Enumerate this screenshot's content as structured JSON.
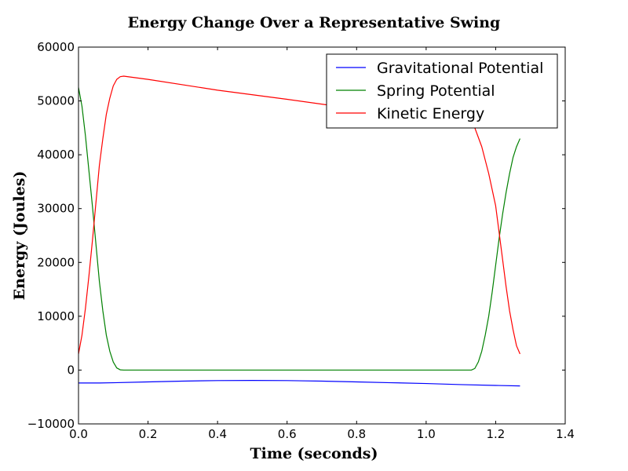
{
  "chart_data": {
    "type": "line",
    "title": "Energy Change Over a Representative Swing",
    "xlabel": "Time (seconds)",
    "ylabel": "Energy (Joules)",
    "xlim": [
      0.0,
      1.4
    ],
    "ylim": [
      -10000,
      60000
    ],
    "xticks": [
      "0.0",
      "0.2",
      "0.4",
      "0.6",
      "0.8",
      "1.0",
      "1.2",
      "1.4"
    ],
    "yticks": [
      "−10000",
      "0",
      "10000",
      "20000",
      "30000",
      "40000",
      "50000",
      "60000"
    ],
    "grid": false,
    "legend_position": "top-right",
    "series": [
      {
        "name": "Gravitational Potential",
        "color": "#0000ff",
        "x": [
          0.0,
          0.06,
          0.1,
          0.2,
          0.3,
          0.4,
          0.5,
          0.6,
          0.7,
          0.8,
          0.9,
          1.0,
          1.1,
          1.2,
          1.27
        ],
        "y": [
          -2400,
          -2400,
          -2350,
          -2200,
          -2050,
          -1950,
          -1920,
          -1950,
          -2050,
          -2200,
          -2350,
          -2500,
          -2700,
          -2850,
          -2950
        ]
      },
      {
        "name": "Spring Potential",
        "color": "#008000",
        "x": [
          0.0,
          0.01,
          0.02,
          0.03,
          0.04,
          0.05,
          0.06,
          0.07,
          0.08,
          0.09,
          0.1,
          0.11,
          0.12,
          0.13,
          0.14,
          0.3,
          0.6,
          0.9,
          1.13,
          1.14,
          1.15,
          1.16,
          1.17,
          1.18,
          1.19,
          1.2,
          1.21,
          1.22,
          1.23,
          1.24,
          1.25,
          1.26,
          1.27
        ],
        "y": [
          52500,
          49000,
          43500,
          37000,
          30500,
          23500,
          16500,
          11000,
          6500,
          3500,
          1500,
          400,
          50,
          0,
          0,
          0,
          0,
          0,
          0,
          300,
          1500,
          3500,
          6500,
          10000,
          14500,
          19500,
          24500,
          29000,
          33000,
          36500,
          39500,
          41500,
          43000
        ]
      },
      {
        "name": "Kinetic Energy",
        "color": "#ff0000",
        "x": [
          0.0,
          0.01,
          0.02,
          0.03,
          0.04,
          0.05,
          0.06,
          0.07,
          0.08,
          0.09,
          0.1,
          0.11,
          0.12,
          0.13,
          0.2,
          0.4,
          0.6,
          0.8,
          1.0,
          1.1,
          1.14,
          1.16,
          1.18,
          1.2,
          1.21,
          1.22,
          1.23,
          1.24,
          1.25,
          1.26,
          1.27
        ],
        "y": [
          3000,
          6500,
          11500,
          17500,
          24000,
          31000,
          38000,
          43000,
          47500,
          50500,
          52800,
          54000,
          54500,
          54600,
          54000,
          52000,
          50300,
          48500,
          46800,
          46000,
          45000,
          41500,
          36500,
          30500,
          25500,
          20500,
          15500,
          11000,
          7500,
          4500,
          3000
        ]
      }
    ]
  }
}
